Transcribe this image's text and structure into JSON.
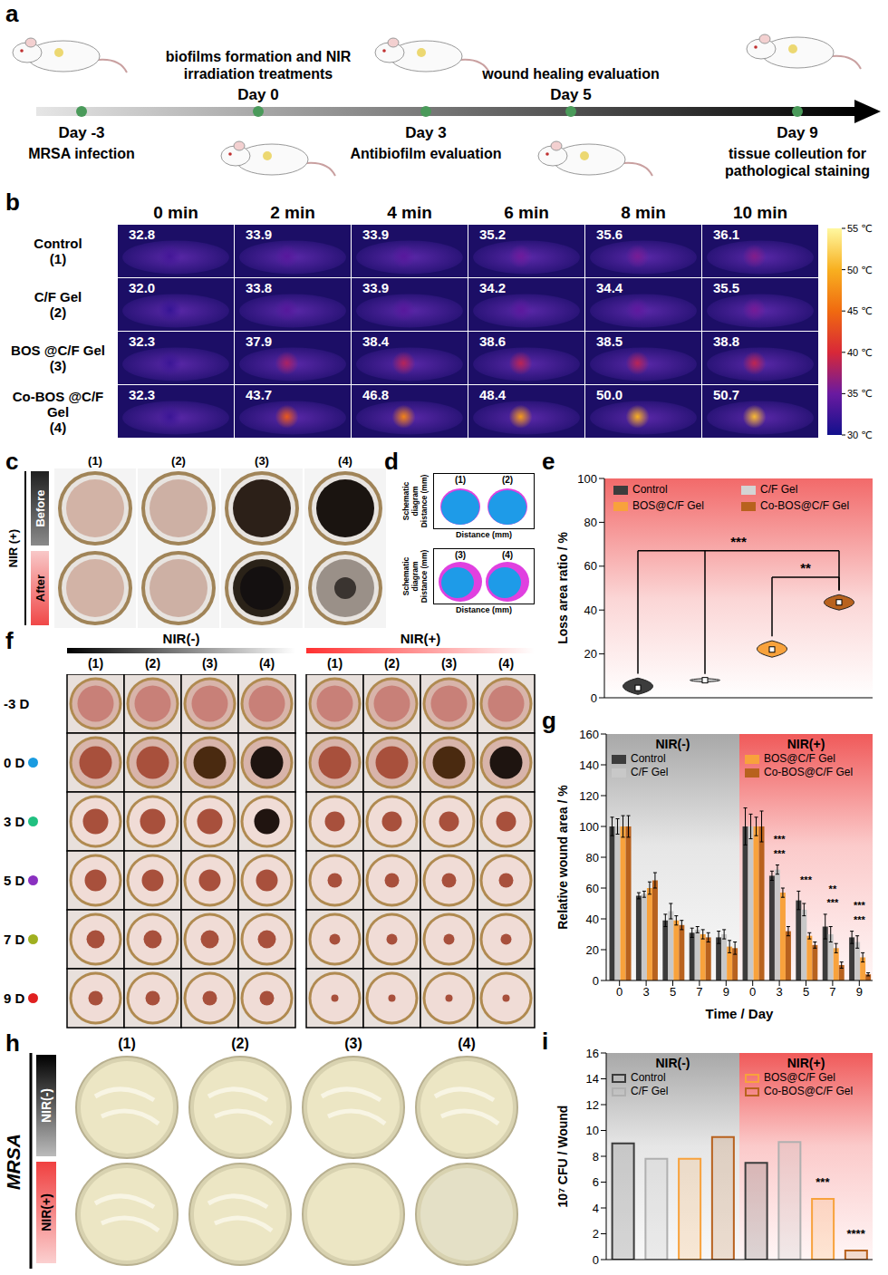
{
  "timeline": {
    "letter": "a",
    "events": [
      {
        "day": "Day -3",
        "text": "MRSA infection"
      },
      {
        "day": "Day 0",
        "text": "biofilms formation and NIR irradiation treatments"
      },
      {
        "day": "Day 3",
        "text": "Antibiofilm evaluation"
      },
      {
        "day": "Day 5",
        "text": "wound healing evaluation"
      },
      {
        "day": "Day 9",
        "text": "tissue colleution for pathological staining"
      }
    ]
  },
  "thermal": {
    "letter": "b",
    "times": [
      "0 min",
      "2 min",
      "4 min",
      "6 min",
      "8 min",
      "10 min"
    ],
    "groups": [
      {
        "name": "Control",
        "index": "(1)",
        "temps": [
          32.8,
          33.9,
          33.9,
          35.2,
          35.6,
          36.1
        ]
      },
      {
        "name": "C/F Gel",
        "index": "(2)",
        "temps": [
          32.0,
          33.8,
          33.9,
          34.2,
          34.4,
          35.5
        ]
      },
      {
        "name": "BOS @C/F Gel",
        "index": "(3)",
        "temps": [
          32.3,
          37.9,
          38.4,
          38.6,
          38.5,
          38.8
        ]
      },
      {
        "name": "Co-BOS @C/F Gel",
        "index": "(4)",
        "temps": [
          32.3,
          43.7,
          46.8,
          48.4,
          50.0,
          50.7
        ]
      }
    ],
    "colorbar": {
      "range": [
        30,
        55
      ],
      "ticks": [
        {
          "value": 30,
          "label": "30 ℃"
        },
        {
          "value": 35,
          "label": "35 ℃"
        },
        {
          "value": 40,
          "label": "40 ℃"
        },
        {
          "value": 45,
          "label": "45 ℃"
        },
        {
          "value": 50,
          "label": "50 ℃"
        },
        {
          "value": 55,
          "label": "55 ℃"
        }
      ]
    }
  },
  "photos_c": {
    "letter": "c",
    "condition": "NIR (+)",
    "rows": [
      "Before",
      "After"
    ],
    "columns": [
      "(1)",
      "(2)",
      "(3)",
      "(4)"
    ]
  },
  "schematic_d": {
    "letter": "d",
    "panels": [
      {
        "ylabel": "Schematic diagram Distance (mm)",
        "xlabel": "Distance (mm)",
        "labels": [
          "(1)",
          "(2)"
        ]
      },
      {
        "ylabel": "Schematic diagram Distance (mm)",
        "xlabel": "Distance (mm)",
        "labels": [
          "(3)",
          "(4)"
        ]
      }
    ]
  },
  "photos_f": {
    "letter": "f",
    "conditions": [
      "NIR(-)",
      "NIR(+)"
    ],
    "columns": [
      "(1)",
      "(2)",
      "(3)",
      "(4)"
    ],
    "days": [
      "-3 D",
      "0 D",
      "3 D",
      "5 D",
      "7 D",
      "9 D"
    ]
  },
  "plates_h": {
    "letter": "h",
    "organism": "MRSA",
    "rows": [
      "NIR(-)",
      "NIR(+)"
    ],
    "columns": [
      "(1)",
      "(2)",
      "(3)",
      "(4)"
    ]
  },
  "chart_data": [
    {
      "letter": "e",
      "type": "violin",
      "ylabel": "Loss area ratio / %",
      "categories": [
        "Control",
        "C/F Gel",
        "BOS@C/F Gel",
        "Co-BOS@C/F Gel"
      ],
      "values": [
        4.5,
        8,
        22,
        43.5
      ],
      "ranges": [
        [
          1.5,
          9
        ],
        [
          7.2,
          8.8
        ],
        [
          18.5,
          26
        ],
        [
          40,
          47
        ]
      ],
      "colors": [
        "#3c3c3c",
        "#d4d4d4",
        "#f8a23c",
        "#b8621e"
      ],
      "ylim": [
        0,
        100
      ],
      "yticks": [
        0,
        20,
        40,
        60,
        80,
        100
      ],
      "tick_labels": "y",
      "legend": "top",
      "annotations": [
        {
          "from": [
            0,
            1
          ],
          "to": 3,
          "label": "***"
        },
        {
          "from": [
            2
          ],
          "to": 3,
          "label": "**"
        }
      ]
    },
    {
      "letter": "g",
      "type": "bar",
      "xlabel": "Time / Day",
      "ylabel": "Relative wound area / %",
      "sections": [
        {
          "label": "NIR(-)",
          "categories": [
            "0",
            "3",
            "5",
            "7",
            "9"
          ],
          "legend": [
            "Control",
            "C/F Gel"
          ]
        },
        {
          "label": "NIR(+)",
          "categories": [
            "0",
            "3",
            "5",
            "7",
            "9"
          ],
          "legend": [
            "BOS@C/F Gel",
            "Co-BOS@C/F Gel"
          ]
        }
      ],
      "series": [
        {
          "name": "Control",
          "color": "#3c3c3c",
          "values": [
            100,
            55,
            39,
            31,
            28,
            100,
            68,
            52,
            35,
            28
          ],
          "errors": [
            6,
            2,
            4,
            3,
            4,
            12,
            3,
            6,
            8,
            4
          ]
        },
        {
          "name": "C/F Gel",
          "color": "#c8c8c8",
          "values": [
            100,
            56,
            45,
            33,
            30,
            100,
            72,
            46,
            30,
            25
          ],
          "errors": [
            5,
            2,
            5,
            2,
            3,
            8,
            3,
            4,
            5,
            4
          ]
        },
        {
          "name": "BOS@C/F Gel",
          "color": "#f8a23c",
          "values": [
            100,
            60,
            39,
            30,
            22,
            100,
            57,
            29,
            21,
            15
          ],
          "errors": [
            7,
            4,
            3,
            3,
            4,
            6,
            3,
            2,
            3,
            3
          ]
        },
        {
          "name": "Co-BOS@C/F Gel",
          "color": "#b8621e",
          "values": [
            100,
            65,
            36,
            28,
            21,
            100,
            32,
            23,
            10,
            4
          ],
          "errors": [
            7,
            5,
            3,
            3,
            4,
            10,
            3,
            2,
            2,
            1
          ]
        }
      ],
      "ylim": [
        0,
        160
      ],
      "yticks": [
        0,
        20,
        40,
        60,
        80,
        100,
        120,
        140,
        160
      ],
      "legend": "top",
      "annotations": [
        {
          "category_index": 6,
          "labels": [
            "***",
            "***"
          ]
        },
        {
          "category_index": 7,
          "labels": [
            "***"
          ]
        },
        {
          "category_index": 8,
          "labels": [
            "***",
            "**"
          ]
        },
        {
          "category_index": 9,
          "labels": [
            "***",
            "***"
          ]
        }
      ]
    },
    {
      "letter": "i",
      "type": "bar",
      "ylabel": "10⁷ CFU / Wound",
      "sections": [
        {
          "label": "NIR(-)",
          "categories": [
            "Control",
            "C/F Gel",
            "BOS@C/F Gel",
            "Co-BOS@C/F Gel"
          ],
          "legend": [
            "Control",
            "C/F Gel"
          ]
        },
        {
          "label": "NIR(+)",
          "categories": [
            "Control",
            "C/F Gel",
            "BOS@C/F Gel",
            "Co-BOS@C/F Gel"
          ],
          "legend": [
            "BOS@C/F Gel",
            "Co-BOS@C/F Gel"
          ]
        }
      ],
      "values": [
        9.0,
        7.8,
        7.8,
        9.5,
        7.5,
        9.1,
        4.7,
        0.7
      ],
      "colors": [
        "#3c3c3c",
        "#b0b0b0",
        "#f8a23c",
        "#b8621e",
        "#3c3c3c",
        "#b0b0b0",
        "#f8a23c",
        "#b8621e"
      ],
      "ylim": [
        0,
        16
      ],
      "yticks": [
        0,
        2,
        4,
        6,
        8,
        10,
        12,
        14,
        16
      ],
      "tick_labels": "y",
      "legend": "top",
      "annotations": [
        {
          "category_index": 6,
          "label": "***"
        },
        {
          "category_index": 7,
          "label": "****"
        }
      ]
    }
  ]
}
